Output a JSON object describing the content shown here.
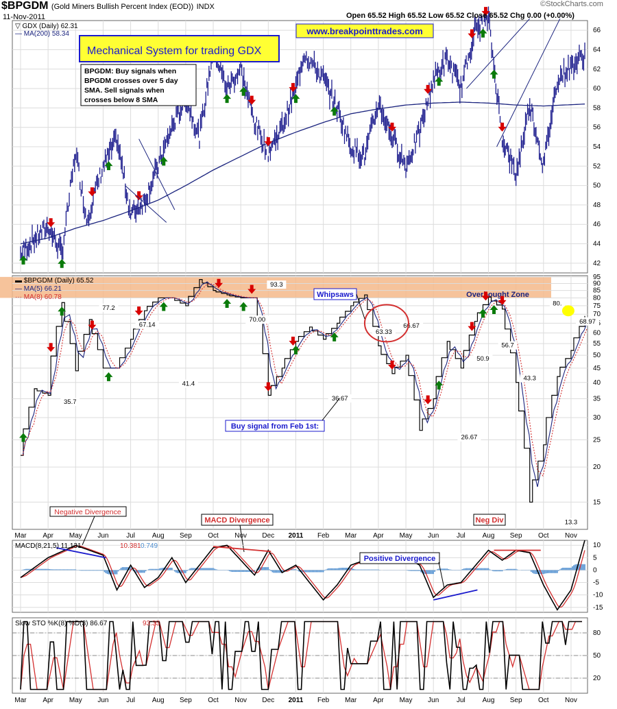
{
  "header": {
    "symbol": "$BPGDM",
    "name": "(Gold Miners Bullish Percent Index (EOD))",
    "exchange": "INDX",
    "date": "11-Nov-2011",
    "ohlc": "Open 65.52  High 65.52  Low 65.52  Close 65.52  Chg 0.00 (+0.00%)",
    "logo": "©StockCharts.com"
  },
  "colors": {
    "price": "#1a1a8c",
    "ma_blue": "#1a237e",
    "ma_red": "#d32f2f",
    "buy": "#0a7a0a",
    "sell": "#d80000",
    "overbought": "#f4b98a",
    "highlight": "#ffff00",
    "grid": "#dcdcdc",
    "hist": "#4f8fd0"
  },
  "annotations": {
    "banner": "Mechanical System for trading GDX",
    "rules": [
      "BPGDM: Buy signals when",
      "BPGDM crosses over 5 day",
      "SMA.  Sell signals when",
      "crosses below 8 SMA"
    ],
    "url": "www.breakpointtrades.com",
    "whipsaws": "Whipsaws",
    "overbought": "Overbought Zone",
    "buy_signal_feb": "Buy signal from Feb 1st:",
    "negative_divergence": "Negative Divergence",
    "macd_divergence": "MACD Divergence",
    "positive_divergence": "Positive Divergence",
    "neg_div": "Neg Div"
  },
  "months": [
    "Mar",
    "Apr",
    "May",
    "Jun",
    "Jul",
    "Aug",
    "Sep",
    "Oct",
    "Nov",
    "Dec",
    "2011",
    "Feb",
    "Mar",
    "Apr",
    "May",
    "Jun",
    "Jul",
    "Aug",
    "Sep",
    "Oct",
    "Nov"
  ],
  "chart_data": [
    {
      "type": "line",
      "panel": "price",
      "legend": [
        {
          "name": "GDX (Daily)",
          "value": "62.31"
        },
        {
          "name": "MA(200)",
          "value": "58.34"
        }
      ],
      "ylim": [
        41,
        67
      ],
      "yticks": [
        42,
        44,
        46,
        48,
        50,
        52,
        54,
        56,
        58,
        60,
        62,
        64,
        66
      ],
      "series": [
        {
          "name": "GDX (Daily)",
          "x": [
            0,
            0.5,
            1,
            1.5,
            2,
            2.4,
            3,
            3.5,
            4,
            4.5,
            5,
            5.5,
            6,
            6.5,
            7,
            7.5,
            8,
            8.5,
            9,
            9.5,
            10,
            10.3,
            11,
            11.5,
            12,
            12.5,
            13,
            13.5,
            14,
            14.5,
            15,
            15.5,
            16,
            16.5,
            17,
            17.5,
            18,
            18.5,
            19,
            19.5,
            20.5
          ],
          "y": [
            43,
            44.5,
            45.8,
            43,
            53.5,
            46.5,
            52,
            54.8,
            47,
            48.5,
            52,
            56,
            59,
            55,
            64,
            60,
            62,
            56.5,
            53.5,
            56,
            60,
            63.7,
            61,
            58,
            54,
            53,
            58.5,
            55,
            52,
            55.5,
            61,
            63,
            60,
            66,
            67.2,
            55,
            51,
            58.5,
            52,
            61,
            63.5
          ]
        },
        {
          "name": "MA(200)",
          "x": [
            0,
            1,
            2,
            3,
            4,
            5,
            6,
            7,
            8,
            9,
            10,
            11,
            12,
            13,
            14,
            15,
            16,
            17,
            18,
            19,
            20.5
          ],
          "y": [
            44,
            44.6,
            45.6,
            46.4,
            47.4,
            48.5,
            50,
            51.6,
            53,
            54.4,
            55.5,
            56.5,
            57.4,
            57.9,
            58.3,
            58.5,
            58.6,
            58.5,
            58.3,
            58.2,
            58.4
          ]
        }
      ],
      "buy_signals": [
        0.1,
        1.5,
        3.2,
        5.2,
        7.5,
        8.1,
        10,
        11.4,
        15.2,
        16.8,
        17.2
      ],
      "sell_signals": [
        1.1,
        2.6,
        4.3,
        7.2,
        8.4,
        9,
        9.9,
        13.5,
        14.8,
        16.4,
        16.9,
        17.5
      ]
    },
    {
      "type": "line",
      "panel": "bpgdm",
      "legend": [
        {
          "name": "$BPGDM (Daily)",
          "value": "65.52"
        },
        {
          "name": "MA(5)",
          "value": "66.21"
        },
        {
          "name": "MA(8)",
          "value": "60.78"
        }
      ],
      "ylim": [
        12,
        96
      ],
      "yticks": [
        15,
        20,
        25,
        30,
        35,
        40,
        45,
        50,
        55,
        60,
        65,
        70,
        75,
        80,
        85,
        90,
        95
      ],
      "overbought_zone": [
        80,
        95
      ],
      "series": [
        {
          "name": "$BPGDM",
          "x": [
            0,
            0.5,
            1,
            1.5,
            2,
            2.5,
            3,
            3.5,
            4,
            4.5,
            5,
            5.5,
            6,
            6.5,
            7,
            7.5,
            8,
            8.5,
            9,
            9.5,
            10,
            10.5,
            11,
            11.5,
            12,
            12.5,
            13,
            13.5,
            14,
            14.5,
            15,
            15.5,
            16,
            16.5,
            17,
            17.5,
            18,
            18.5,
            19,
            19.5,
            20,
            20.5
          ],
          "y": [
            22,
            38,
            36,
            77,
            44,
            67,
            45,
            45,
            57,
            72,
            80,
            80,
            75,
            93,
            85,
            82,
            80,
            80,
            36,
            45,
            56,
            63,
            57,
            65,
            75,
            82,
            54,
            43,
            50,
            27,
            35,
            56,
            45,
            66,
            80.5,
            73,
            40,
            15,
            24,
            42,
            52,
            69
          ]
        },
        {
          "name": "MA(5)",
          "values": "smoothed"
        },
        {
          "name": "MA(8)",
          "values": "smoothed"
        }
      ],
      "data_labels": [
        {
          "x": 1.8,
          "y": 35.7,
          "text": "35.7"
        },
        {
          "x": 3.2,
          "y": 77.2,
          "text": "77.2"
        },
        {
          "x": 4.6,
          "y": 67.1,
          "text": "67.14"
        },
        {
          "x": 6.1,
          "y": 41.4,
          "text": "41.4"
        },
        {
          "x": 8.6,
          "y": 70,
          "text": "70.00"
        },
        {
          "x": 9.3,
          "y": 93.3,
          "text": "93.3"
        },
        {
          "x": 11.6,
          "y": 36.7,
          "text": "36.67"
        },
        {
          "x": 13.2,
          "y": 63.3,
          "text": "63.33"
        },
        {
          "x": 14.2,
          "y": 66.7,
          "text": "66.67"
        },
        {
          "x": 16.3,
          "y": 26.7,
          "text": "26.67"
        },
        {
          "x": 16.8,
          "y": 50.9,
          "text": "50.9"
        },
        {
          "x": 17.7,
          "y": 56.7,
          "text": "56.7"
        },
        {
          "x": 18.5,
          "y": 43.3,
          "text": "43.3"
        },
        {
          "x": 19.5,
          "y": 80,
          "text": "80."
        },
        {
          "x": 20,
          "y": 13.3,
          "text": "13.3"
        },
        {
          "x": 20.6,
          "y": 69,
          "text": "68.97"
        }
      ]
    },
    {
      "type": "line",
      "panel": "macd",
      "legend": [
        {
          "name": "MACD(8,21,5)",
          "value": "11.131"
        },
        {
          "name": "signal",
          "value": "10.381"
        },
        {
          "name": "histogram",
          "value": "0.749"
        }
      ],
      "ylim": [
        -17,
        12
      ],
      "yticks": [
        -15,
        -10,
        -5,
        0,
        5,
        10
      ],
      "series": [
        {
          "name": "MACD",
          "x": [
            0,
            1,
            2,
            3,
            3.5,
            4,
            4.5,
            5,
            5.5,
            6,
            7,
            7.5,
            8,
            8.5,
            9,
            9.5,
            10,
            11,
            11.5,
            12,
            13,
            14,
            14.5,
            15,
            15.5,
            16,
            17,
            17.5,
            18,
            18.5,
            19,
            19.5,
            20,
            20.5
          ],
          "y": [
            -3,
            5,
            10,
            6,
            -8,
            2,
            -7,
            -3,
            5,
            -5,
            9,
            10,
            4,
            -2,
            8,
            -1,
            2,
            -12,
            -6,
            2,
            6,
            5,
            2,
            -11,
            -6,
            -5,
            8,
            4,
            8,
            7,
            -6,
            -16,
            -8,
            12
          ]
        }
      ]
    },
    {
      "type": "line",
      "panel": "stochastic",
      "legend": [
        {
          "name": "Slow STO %K(8)",
          "value": ""
        },
        {
          "name": "%D(3)",
          "value": "86.67"
        },
        {
          "name": "",
          "value": "93.33"
        }
      ],
      "ylim": [
        0,
        100
      ],
      "yticks": [
        20,
        50,
        80
      ]
    }
  ]
}
